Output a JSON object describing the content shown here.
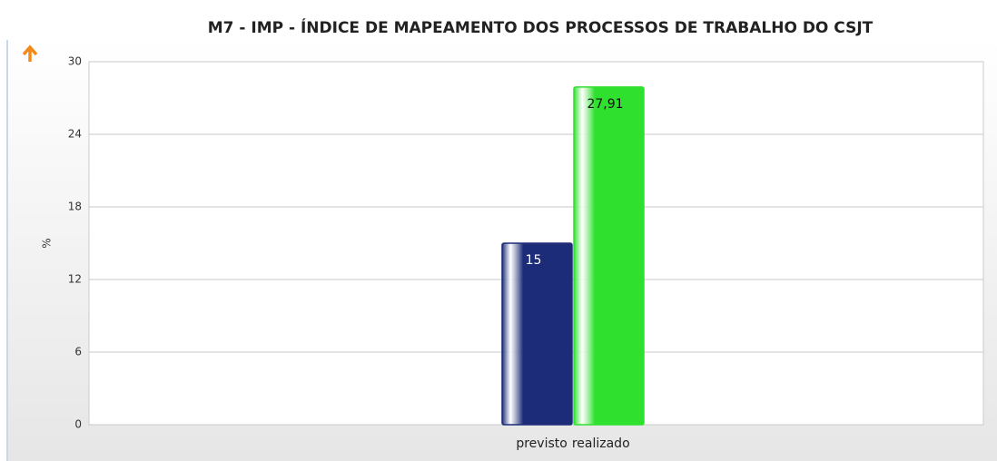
{
  "chart_data": {
    "type": "bar",
    "title": "M7 - IMP - ÍNDICE DE MAPEAMENTO DOS PROCESSOS DE TRABALHO DO CSJT",
    "y_label": "%",
    "series": [
      {
        "name": "previsto",
        "color": "#1c2c78",
        "values": [
          15
        ],
        "value_labels": [
          "15"
        ]
      },
      {
        "name": "realizado",
        "color": "#2fe02f",
        "values": [
          27.91
        ],
        "value_labels": [
          "27,91"
        ]
      }
    ],
    "ylim": [
      0,
      30
    ],
    "yticks": [
      0,
      6,
      12,
      18,
      24,
      30
    ],
    "grid": true
  }
}
